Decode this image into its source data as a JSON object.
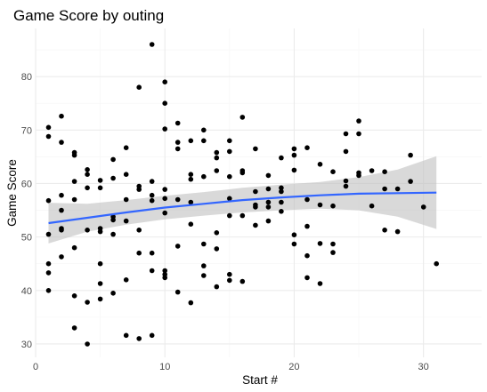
{
  "chart_data": {
    "type": "scatter",
    "title": "Game Score by outing",
    "xlabel": "Start #",
    "ylabel": "Game Score",
    "xlim": [
      0,
      34.5
    ],
    "ylim": [
      27.5,
      89
    ],
    "x_ticks": [
      0,
      10,
      20,
      30
    ],
    "y_ticks": [
      30,
      40,
      50,
      60,
      70,
      80
    ],
    "grid": true,
    "legend": "none",
    "colors": {
      "points": "#000000",
      "smooth_line": "#3366ff",
      "ribbon": "#bfbfbf",
      "grid_major": "#ebebeb",
      "grid_minor": "#f5f5f5"
    },
    "points": [
      [
        1,
        70.5
      ],
      [
        1,
        68.8
      ],
      [
        1,
        56.8
      ],
      [
        1,
        50.5
      ],
      [
        1,
        45
      ],
      [
        1,
        43.3
      ],
      [
        1,
        40
      ],
      [
        2,
        72.6
      ],
      [
        2,
        67.7
      ],
      [
        2,
        57.8
      ],
      [
        2,
        55
      ],
      [
        2,
        51.6
      ],
      [
        2,
        51.3
      ],
      [
        2,
        46.3
      ],
      [
        3,
        65.8
      ],
      [
        3,
        65.3
      ],
      [
        3,
        60.4
      ],
      [
        3,
        57
      ],
      [
        3,
        48
      ],
      [
        3,
        39
      ],
      [
        3,
        33
      ],
      [
        4,
        62.6
      ],
      [
        4,
        61.7
      ],
      [
        4,
        59.2
      ],
      [
        4,
        51.3
      ],
      [
        4,
        37.8
      ],
      [
        4,
        30
      ],
      [
        5,
        60.6
      ],
      [
        5,
        59.2
      ],
      [
        5,
        51.6
      ],
      [
        5,
        51
      ],
      [
        5,
        45
      ],
      [
        5,
        41.3
      ],
      [
        5,
        38.4
      ],
      [
        6,
        64.5
      ],
      [
        6,
        61
      ],
      [
        6,
        53.8
      ],
      [
        6,
        53.2
      ],
      [
        6,
        50.5
      ],
      [
        6,
        39.5
      ],
      [
        7,
        66.7
      ],
      [
        7,
        61.7
      ],
      [
        7,
        57
      ],
      [
        7,
        53
      ],
      [
        7,
        42
      ],
      [
        7,
        31.6
      ],
      [
        8,
        78
      ],
      [
        8,
        59.5
      ],
      [
        8,
        58.9
      ],
      [
        8,
        51.3
      ],
      [
        8,
        47
      ],
      [
        8,
        31
      ],
      [
        9,
        86
      ],
      [
        9,
        60.4
      ],
      [
        9,
        57.8
      ],
      [
        9,
        56.8
      ],
      [
        9,
        47
      ],
      [
        9,
        43.7
      ],
      [
        9,
        31.6
      ],
      [
        10,
        79
      ],
      [
        10,
        75
      ],
      [
        10,
        70.2
      ],
      [
        10,
        58.9
      ],
      [
        10,
        57.2
      ],
      [
        10,
        54.5
      ],
      [
        10,
        43.7
      ],
      [
        10,
        43
      ],
      [
        10,
        42.4
      ],
      [
        11,
        71.3
      ],
      [
        11,
        67.7
      ],
      [
        11,
        66.5
      ],
      [
        11,
        57
      ],
      [
        11,
        48.3
      ],
      [
        11,
        39.7
      ],
      [
        12,
        68
      ],
      [
        12,
        61.7
      ],
      [
        12,
        60.8
      ],
      [
        12,
        56.5
      ],
      [
        12,
        52.4
      ],
      [
        12,
        37.7
      ],
      [
        13,
        70
      ],
      [
        13,
        68
      ],
      [
        13,
        61.3
      ],
      [
        13,
        48.7
      ],
      [
        13,
        44.6
      ],
      [
        13,
        42.8
      ],
      [
        14,
        65.8
      ],
      [
        14,
        64.8
      ],
      [
        14,
        62.4
      ],
      [
        14,
        50.8
      ],
      [
        14,
        47.8
      ],
      [
        14,
        40.7
      ],
      [
        15,
        68
      ],
      [
        15,
        66
      ],
      [
        15,
        61.3
      ],
      [
        15,
        57.2
      ],
      [
        15,
        54
      ],
      [
        15,
        43
      ],
      [
        15,
        41.9
      ],
      [
        16,
        72.4
      ],
      [
        16,
        62.4
      ],
      [
        16,
        62
      ],
      [
        16,
        54
      ],
      [
        16,
        41.7
      ],
      [
        17,
        66.5
      ],
      [
        17,
        58.5
      ],
      [
        17,
        56
      ],
      [
        17,
        55.6
      ],
      [
        17,
        52.2
      ],
      [
        18,
        61.5
      ],
      [
        18,
        59
      ],
      [
        18,
        56.5
      ],
      [
        18,
        55.6
      ],
      [
        18,
        53
      ],
      [
        19,
        64.8
      ],
      [
        19,
        59.2
      ],
      [
        19,
        58.5
      ],
      [
        19,
        56.5
      ],
      [
        19,
        54.8
      ],
      [
        20,
        66.5
      ],
      [
        20,
        65.3
      ],
      [
        20,
        62.5
      ],
      [
        20,
        50.4
      ],
      [
        20,
        48.7
      ],
      [
        21,
        66.7
      ],
      [
        21,
        57
      ],
      [
        21,
        52
      ],
      [
        21,
        46.5
      ],
      [
        21,
        42.4
      ],
      [
        22,
        63.6
      ],
      [
        22,
        56
      ],
      [
        22,
        48.8
      ],
      [
        22,
        41.3
      ],
      [
        23,
        62.2
      ],
      [
        23,
        55.8
      ],
      [
        23,
        48.7
      ],
      [
        23,
        47.1
      ],
      [
        24,
        69.3
      ],
      [
        24,
        66
      ],
      [
        24,
        60.5
      ],
      [
        24,
        59.5
      ],
      [
        25,
        71.7
      ],
      [
        25,
        69.3
      ],
      [
        25,
        62
      ],
      [
        25,
        61.5
      ],
      [
        26,
        62.4
      ],
      [
        26,
        55.8
      ],
      [
        27,
        62.2
      ],
      [
        27,
        59
      ],
      [
        27,
        51.3
      ],
      [
        28,
        59
      ],
      [
        28,
        51
      ],
      [
        29,
        65.3
      ],
      [
        29,
        60.4
      ],
      [
        30,
        55.6
      ],
      [
        31,
        45
      ]
    ],
    "smooth": {
      "method": "loess",
      "x": [
        1,
        4,
        7,
        10,
        13,
        16,
        19,
        22,
        25,
        28,
        31
      ],
      "fit": [
        52.6,
        53.6,
        54.6,
        55.5,
        56.2,
        56.9,
        57.4,
        57.8,
        58.1,
        58.2,
        58.3
      ],
      "lower": [
        48.8,
        51.0,
        52.3,
        53.3,
        54.0,
        54.6,
        55.0,
        55.3,
        55.0,
        53.8,
        51.5
      ],
      "upper": [
        56.4,
        56.2,
        56.9,
        57.7,
        58.4,
        59.2,
        59.8,
        60.3,
        61.2,
        62.6,
        65.1
      ]
    }
  }
}
